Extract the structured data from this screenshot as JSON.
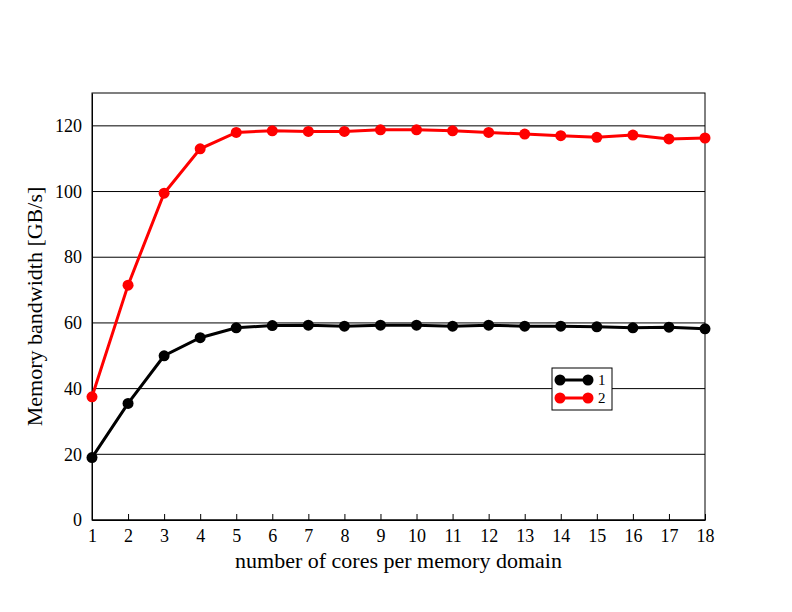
{
  "chart_data": {
    "type": "line",
    "x_label": "number of cores per memory domain",
    "y_label": "Memory bandwidth [GB/s]",
    "x": [
      1,
      2,
      3,
      4,
      5,
      6,
      7,
      8,
      9,
      10,
      11,
      12,
      13,
      14,
      15,
      16,
      17,
      18
    ],
    "series": [
      {
        "name": "1",
        "color": "#000000",
        "marker": "circle",
        "values": [
          19,
          35.5,
          50,
          55.5,
          58.5,
          59.2,
          59.3,
          59,
          59.3,
          59.3,
          59,
          59.3,
          59,
          59,
          58.8,
          58.5,
          58.7,
          58.2
        ]
      },
      {
        "name": "2",
        "color": "#ff0000",
        "marker": "circle",
        "values": [
          37.5,
          71.5,
          99.5,
          113,
          118,
          118.5,
          118.3,
          118.3,
          118.8,
          118.8,
          118.5,
          118,
          117.5,
          117,
          116.5,
          117.2,
          116,
          116.3
        ]
      }
    ],
    "xlim": [
      1,
      18
    ],
    "xticks": [
      1,
      2,
      3,
      4,
      5,
      6,
      7,
      8,
      9,
      10,
      11,
      12,
      13,
      14,
      15,
      16,
      17,
      18
    ],
    "ylim": [
      0,
      130
    ],
    "yticks": [
      0,
      20,
      40,
      60,
      80,
      100,
      120
    ],
    "grid": true,
    "legend": "right"
  }
}
